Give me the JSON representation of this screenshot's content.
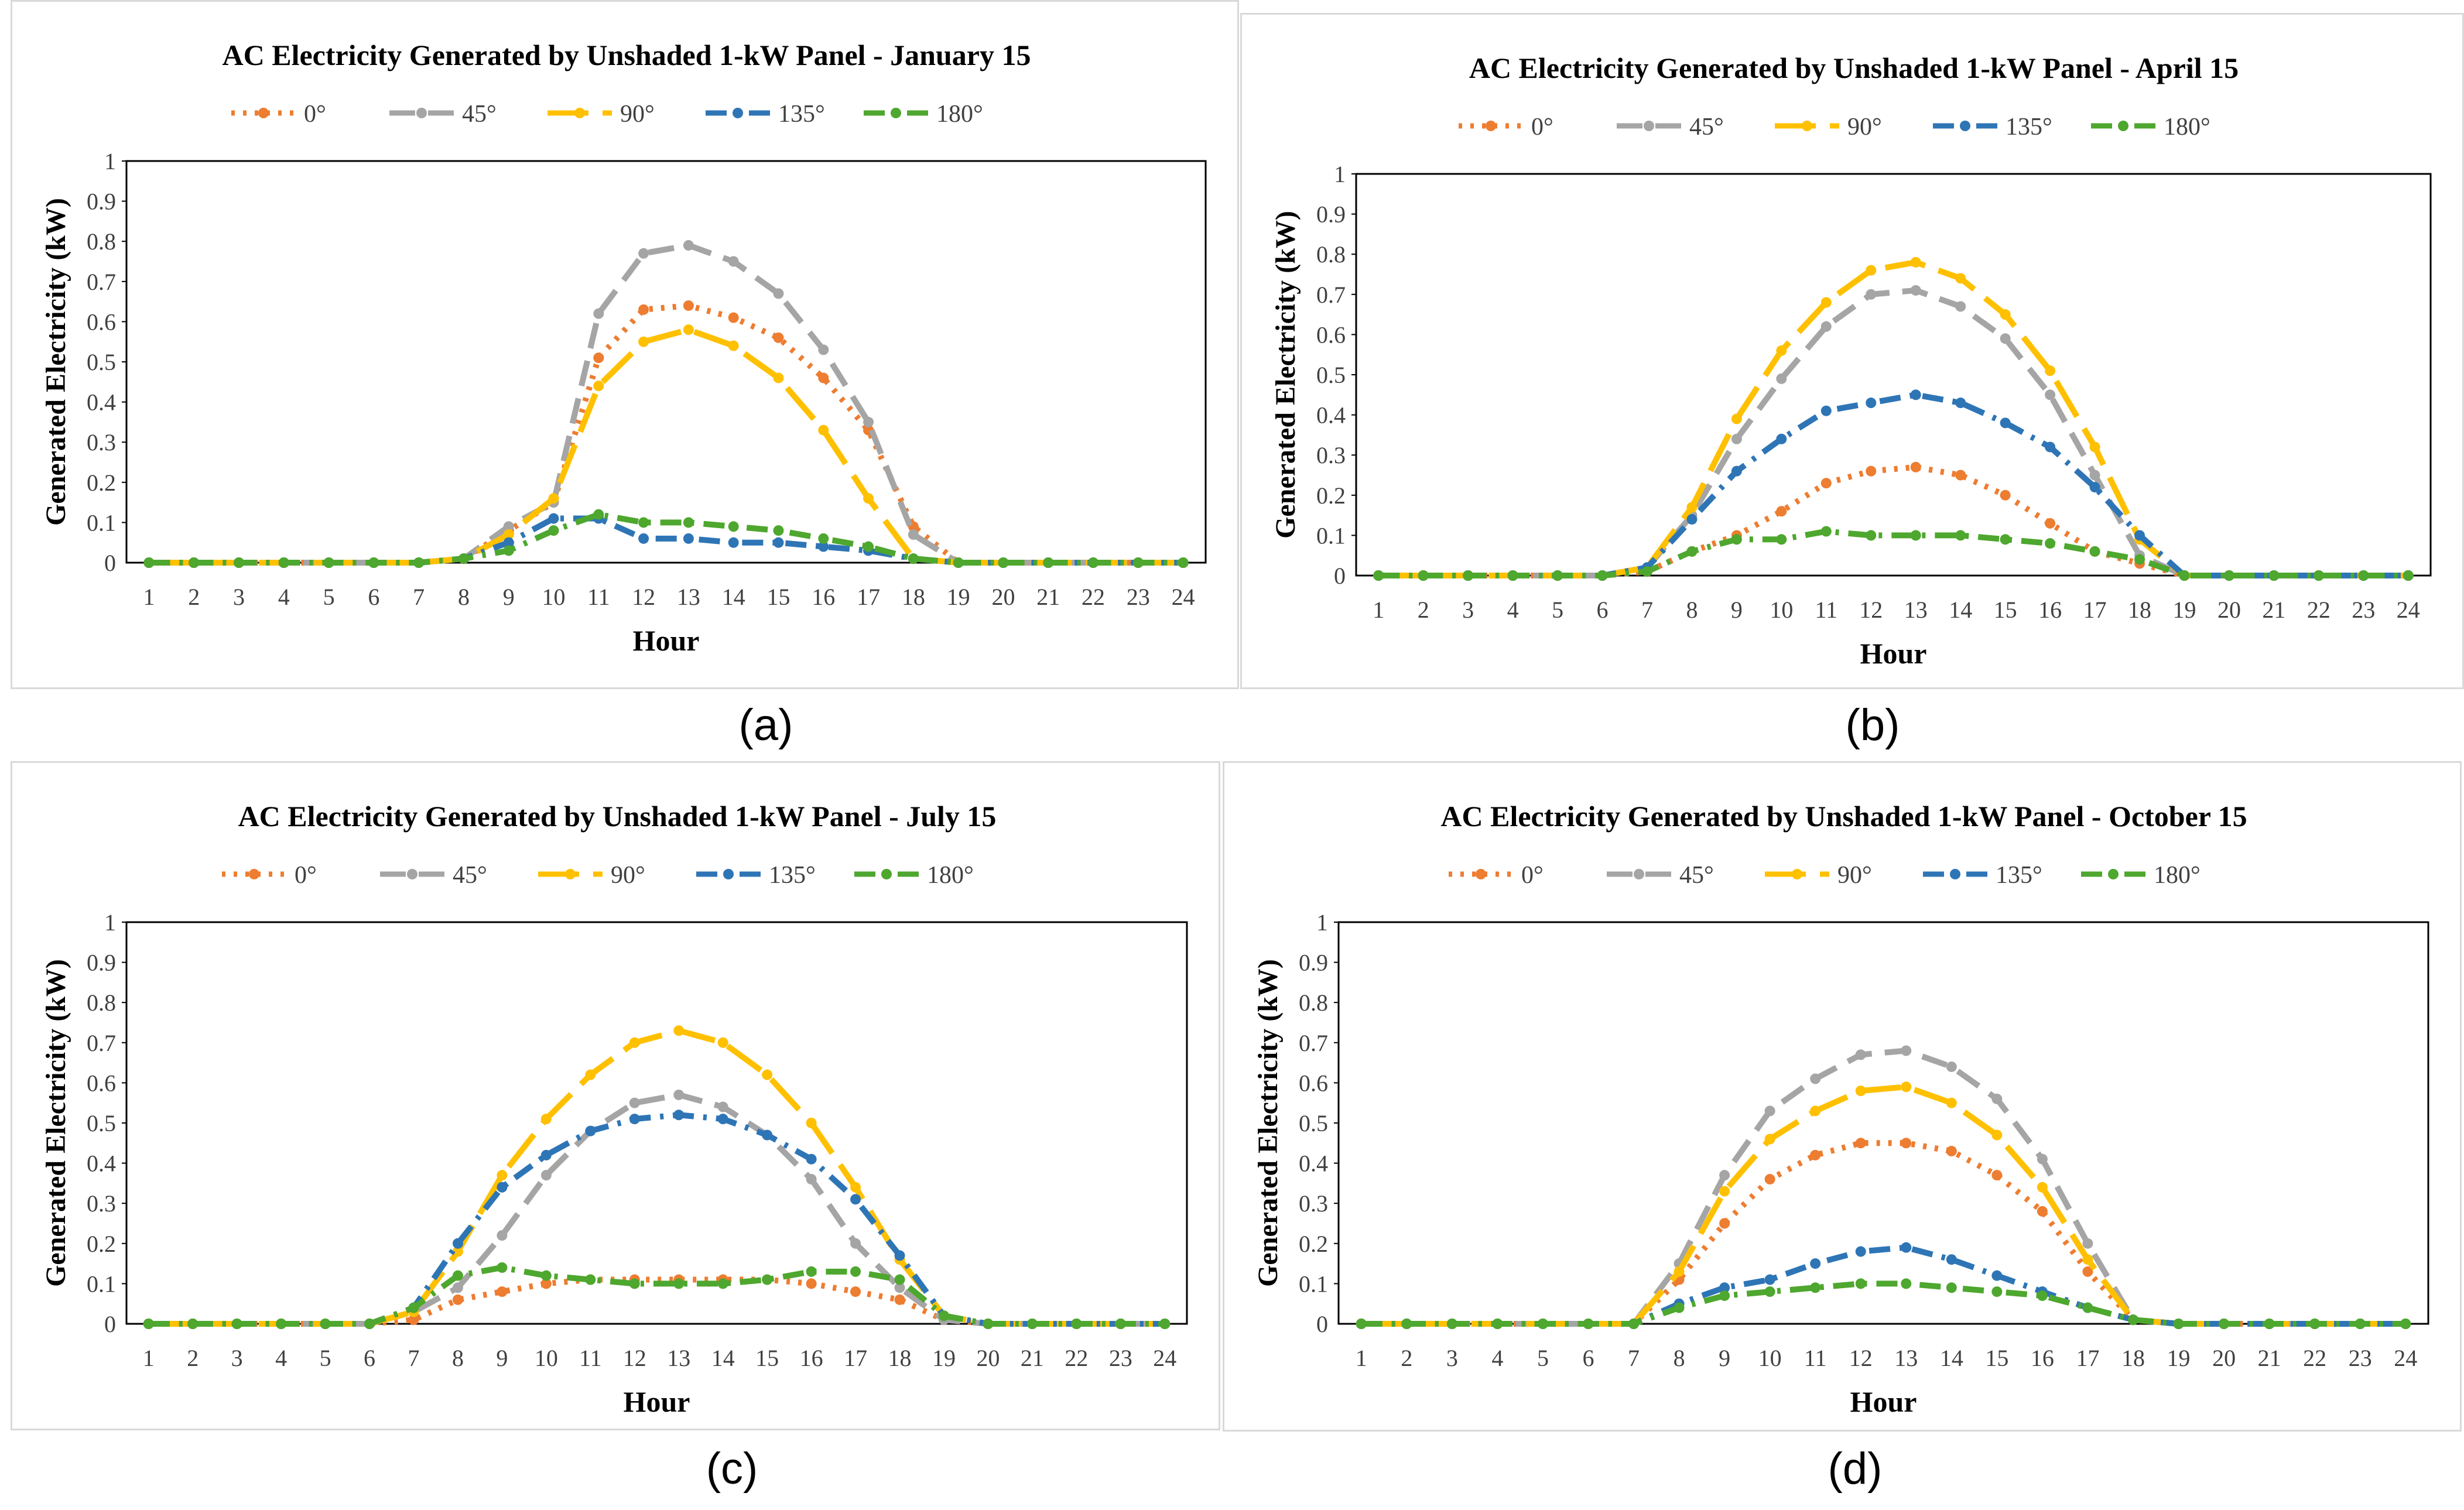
{
  "figure": {
    "captions": [
      "(a)",
      "(b)",
      "(c)",
      "(d)"
    ]
  },
  "chart_data": [
    {
      "type": "line",
      "title": "AC Electricity Generated by Unshaded 1-kW Panel - January 15",
      "xlabel": "Hour",
      "ylabel": "Generated Electricity (kW)",
      "categories": [
        1,
        2,
        3,
        4,
        5,
        6,
        7,
        8,
        9,
        10,
        11,
        12,
        13,
        14,
        15,
        16,
        17,
        18,
        19,
        20,
        21,
        22,
        23,
        24
      ],
      "ylim": [
        0,
        1
      ],
      "yticks": [
        "0",
        "0.1",
        "0.2",
        "0.3",
        "0.4",
        "0.5",
        "0.6",
        "0.7",
        "0.8",
        "0.9",
        "1"
      ],
      "legend_position": "top",
      "series": [
        {
          "name": "0°",
          "color": "#ED7D31",
          "style": "dotted",
          "values": [
            0,
            0,
            0,
            0,
            0,
            0,
            0,
            0.01,
            0.08,
            0.15,
            0.51,
            0.63,
            0.64,
            0.61,
            0.56,
            0.46,
            0.33,
            0.09,
            0,
            0,
            0,
            0,
            0,
            0
          ]
        },
        {
          "name": "45°",
          "color": "#A5A5A5",
          "style": "dashed",
          "values": [
            0,
            0,
            0,
            0,
            0,
            0,
            0,
            0.01,
            0.09,
            0.15,
            0.62,
            0.77,
            0.79,
            0.75,
            0.67,
            0.53,
            0.35,
            0.07,
            0,
            0,
            0,
            0,
            0,
            0
          ]
        },
        {
          "name": "90°",
          "color": "#FFC000",
          "style": "longdash",
          "values": [
            0,
            0,
            0,
            0,
            0,
            0,
            0,
            0.01,
            0.07,
            0.16,
            0.44,
            0.55,
            0.58,
            0.54,
            0.46,
            0.33,
            0.16,
            0.01,
            0,
            0,
            0,
            0,
            0,
            0
          ]
        },
        {
          "name": "135°",
          "color": "#2E75B6",
          "style": "dashdot",
          "values": [
            0,
            0,
            0,
            0,
            0,
            0,
            0,
            0.01,
            0.05,
            0.11,
            0.11,
            0.06,
            0.06,
            0.05,
            0.05,
            0.04,
            0.03,
            0.01,
            0,
            0,
            0,
            0,
            0,
            0
          ]
        },
        {
          "name": "180°",
          "color": "#4EA72E",
          "style": "dashdot",
          "values": [
            0,
            0,
            0,
            0,
            0,
            0,
            0,
            0.01,
            0.03,
            0.08,
            0.12,
            0.1,
            0.1,
            0.09,
            0.08,
            0.06,
            0.04,
            0.01,
            0,
            0,
            0,
            0,
            0,
            0
          ]
        }
      ]
    },
    {
      "type": "line",
      "title": "AC Electricity Generated by Unshaded 1-kW Panel - April 15",
      "xlabel": "Hour",
      "ylabel": "Generated Electricity (kW)",
      "categories": [
        1,
        2,
        3,
        4,
        5,
        6,
        7,
        8,
        9,
        10,
        11,
        12,
        13,
        14,
        15,
        16,
        17,
        18,
        19,
        20,
        21,
        22,
        23,
        24
      ],
      "ylim": [
        0,
        1
      ],
      "yticks": [
        "0",
        "0.1",
        "0.2",
        "0.3",
        "0.4",
        "0.5",
        "0.6",
        "0.7",
        "0.8",
        "0.9",
        "1"
      ],
      "legend_position": "top",
      "series": [
        {
          "name": "0°",
          "color": "#ED7D31",
          "style": "dotted",
          "values": [
            0,
            0,
            0,
            0,
            0,
            0,
            0.01,
            0.06,
            0.1,
            0.16,
            0.23,
            0.26,
            0.27,
            0.25,
            0.2,
            0.13,
            0.06,
            0.03,
            0,
            0,
            0,
            0,
            0,
            0
          ]
        },
        {
          "name": "45°",
          "color": "#A5A5A5",
          "style": "dashed",
          "values": [
            0,
            0,
            0,
            0,
            0,
            0,
            0.02,
            0.15,
            0.34,
            0.49,
            0.62,
            0.7,
            0.71,
            0.67,
            0.59,
            0.45,
            0.25,
            0.05,
            0,
            0,
            0,
            0,
            0,
            0
          ]
        },
        {
          "name": "90°",
          "color": "#FFC000",
          "style": "longdash",
          "values": [
            0,
            0,
            0,
            0,
            0,
            0,
            0.02,
            0.17,
            0.39,
            0.56,
            0.68,
            0.76,
            0.78,
            0.74,
            0.65,
            0.51,
            0.32,
            0.09,
            0,
            0,
            0,
            0,
            0,
            0
          ]
        },
        {
          "name": "135°",
          "color": "#2E75B6",
          "style": "dashdot",
          "values": [
            0,
            0,
            0,
            0,
            0,
            0,
            0.02,
            0.14,
            0.26,
            0.34,
            0.41,
            0.43,
            0.45,
            0.43,
            0.38,
            0.32,
            0.22,
            0.1,
            0,
            0,
            0,
            0,
            0,
            0
          ]
        },
        {
          "name": "180°",
          "color": "#4EA72E",
          "style": "dashdot",
          "values": [
            0,
            0,
            0,
            0,
            0,
            0,
            0.01,
            0.06,
            0.09,
            0.09,
            0.11,
            0.1,
            0.1,
            0.1,
            0.09,
            0.08,
            0.06,
            0.04,
            0,
            0,
            0,
            0,
            0,
            0
          ]
        }
      ]
    },
    {
      "type": "line",
      "title": "AC Electricity Generated by Unshaded 1-kW Panel - July 15",
      "xlabel": "Hour",
      "ylabel": "Generated Electricity (kW)",
      "categories": [
        1,
        2,
        3,
        4,
        5,
        6,
        7,
        8,
        9,
        10,
        11,
        12,
        13,
        14,
        15,
        16,
        17,
        18,
        19,
        20,
        21,
        22,
        23,
        24
      ],
      "ylim": [
        0,
        1
      ],
      "yticks": [
        "0",
        "0.1",
        "0.2",
        "0.3",
        "0.4",
        "0.5",
        "0.6",
        "0.7",
        "0.8",
        "0.9",
        "1"
      ],
      "legend_position": "top",
      "series": [
        {
          "name": "0°",
          "color": "#ED7D31",
          "style": "dotted",
          "values": [
            0,
            0,
            0,
            0,
            0,
            0,
            0.01,
            0.06,
            0.08,
            0.1,
            0.11,
            0.11,
            0.11,
            0.11,
            0.11,
            0.1,
            0.08,
            0.06,
            0.01,
            0,
            0,
            0,
            0,
            0
          ]
        },
        {
          "name": "45°",
          "color": "#A5A5A5",
          "style": "dashed",
          "values": [
            0,
            0,
            0,
            0,
            0,
            0,
            0.03,
            0.09,
            0.22,
            0.37,
            0.48,
            0.55,
            0.57,
            0.54,
            0.47,
            0.36,
            0.2,
            0.09,
            0.01,
            0,
            0,
            0,
            0,
            0
          ]
        },
        {
          "name": "90°",
          "color": "#FFC000",
          "style": "longdash",
          "values": [
            0,
            0,
            0,
            0,
            0,
            0,
            0.03,
            0.18,
            0.37,
            0.51,
            0.62,
            0.7,
            0.73,
            0.7,
            0.62,
            0.5,
            0.34,
            0.16,
            0.02,
            0,
            0,
            0,
            0,
            0
          ]
        },
        {
          "name": "135°",
          "color": "#2E75B6",
          "style": "dashdot",
          "values": [
            0,
            0,
            0,
            0,
            0,
            0,
            0.04,
            0.2,
            0.34,
            0.42,
            0.48,
            0.51,
            0.52,
            0.51,
            0.47,
            0.41,
            0.31,
            0.17,
            0.02,
            0,
            0,
            0,
            0,
            0
          ]
        },
        {
          "name": "180°",
          "color": "#4EA72E",
          "style": "dashdot",
          "values": [
            0,
            0,
            0,
            0,
            0,
            0,
            0.04,
            0.12,
            0.14,
            0.12,
            0.11,
            0.1,
            0.1,
            0.1,
            0.11,
            0.13,
            0.13,
            0.11,
            0.02,
            0,
            0,
            0,
            0,
            0
          ]
        }
      ]
    },
    {
      "type": "line",
      "title": "AC Electricity Generated by Unshaded 1-kW Panel - October 15",
      "xlabel": "Hour",
      "ylabel": "Generated Electricity (kW)",
      "categories": [
        1,
        2,
        3,
        4,
        5,
        6,
        7,
        8,
        9,
        10,
        11,
        12,
        13,
        14,
        15,
        16,
        17,
        18,
        19,
        20,
        21,
        22,
        23,
        24
      ],
      "ylim": [
        0,
        1
      ],
      "yticks": [
        "0",
        "0.1",
        "0.2",
        "0.3",
        "0.4",
        "0.5",
        "0.6",
        "0.7",
        "0.8",
        "0.9",
        "1"
      ],
      "legend_position": "top",
      "series": [
        {
          "name": "0°",
          "color": "#ED7D31",
          "style": "dotted",
          "values": [
            0,
            0,
            0,
            0,
            0,
            0,
            0,
            0.11,
            0.25,
            0.36,
            0.42,
            0.45,
            0.45,
            0.43,
            0.37,
            0.28,
            0.13,
            0.01,
            0,
            0,
            0,
            0,
            0,
            0
          ]
        },
        {
          "name": "45°",
          "color": "#A5A5A5",
          "style": "dashed",
          "values": [
            0,
            0,
            0,
            0,
            0,
            0,
            0,
            0.15,
            0.37,
            0.53,
            0.61,
            0.67,
            0.68,
            0.64,
            0.56,
            0.41,
            0.2,
            0.01,
            0,
            0,
            0,
            0,
            0,
            0
          ]
        },
        {
          "name": "90°",
          "color": "#FFC000",
          "style": "longdash",
          "values": [
            0,
            0,
            0,
            0,
            0,
            0,
            0,
            0.13,
            0.33,
            0.46,
            0.53,
            0.58,
            0.59,
            0.55,
            0.47,
            0.34,
            0.16,
            0.01,
            0,
            0,
            0,
            0,
            0,
            0
          ]
        },
        {
          "name": "135°",
          "color": "#2E75B6",
          "style": "dashdot",
          "values": [
            0,
            0,
            0,
            0,
            0,
            0,
            0,
            0.05,
            0.09,
            0.11,
            0.15,
            0.18,
            0.19,
            0.16,
            0.12,
            0.08,
            0.04,
            0.01,
            0,
            0,
            0,
            0,
            0,
            0
          ]
        },
        {
          "name": "180°",
          "color": "#4EA72E",
          "style": "dashdot",
          "values": [
            0,
            0,
            0,
            0,
            0,
            0,
            0,
            0.04,
            0.07,
            0.08,
            0.09,
            0.1,
            0.1,
            0.09,
            0.08,
            0.07,
            0.04,
            0.01,
            0,
            0,
            0,
            0,
            0,
            0
          ]
        }
      ]
    }
  ]
}
